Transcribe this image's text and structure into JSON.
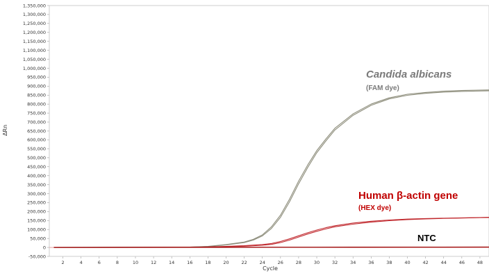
{
  "chart_data": {
    "type": "line",
    "xlabel": "Cycle",
    "ylabel": "ΔRn",
    "xlim": [
      0.5,
      49
    ],
    "ylim": [
      -50000,
      1350000
    ],
    "x_ticks": [
      2,
      4,
      6,
      8,
      10,
      12,
      14,
      16,
      18,
      20,
      22,
      24,
      26,
      28,
      30,
      32,
      34,
      36,
      38,
      40,
      42,
      44,
      46,
      48
    ],
    "y_ticks": [
      -50000,
      0,
      50000,
      100000,
      150000,
      200000,
      250000,
      300000,
      350000,
      400000,
      450000,
      500000,
      550000,
      600000,
      650000,
      700000,
      750000,
      800000,
      850000,
      900000,
      950000,
      1000000,
      1050000,
      1100000,
      1150000,
      1200000,
      1250000,
      1300000,
      1350000
    ],
    "y_tick_labels": [
      "-50,000",
      "0",
      "50,000",
      "100,000",
      "150,000",
      "200,000",
      "250,000",
      "300,000",
      "350,000",
      "400,000",
      "450,000",
      "500,000",
      "550,000",
      "600,000",
      "650,000",
      "700,000",
      "750,000",
      "800,000",
      "850,000",
      "900,000",
      "950,000",
      "1,000,000",
      "1,050,000",
      "1,100,000",
      "1,150,000",
      "1,200,000",
      "1,250,000",
      "1,300,000",
      "1,350,000"
    ],
    "series": [
      {
        "color": "#8c8c7a",
        "x": [
          1,
          16,
          18,
          20,
          22,
          23,
          24,
          25,
          26,
          27,
          28,
          29,
          30,
          31,
          32,
          34,
          36,
          38,
          40,
          42,
          44,
          46,
          48,
          49
        ],
        "y": [
          0,
          2000,
          6000,
          16000,
          30000,
          45000,
          70000,
          115000,
          180000,
          270000,
          370000,
          460000,
          540000,
          605000,
          665000,
          745000,
          800000,
          835000,
          855000,
          865000,
          872000,
          876000,
          878000,
          879000
        ]
      },
      {
        "color": "#8c8c7a",
        "x": [
          1,
          16,
          18,
          20,
          22,
          23,
          24,
          25,
          26,
          27,
          28,
          29,
          30,
          31,
          32,
          34,
          36,
          38,
          40,
          42,
          44,
          46,
          48,
          49
        ],
        "y": [
          0,
          2000,
          5000,
          14000,
          27000,
          41000,
          64000,
          106000,
          168000,
          255000,
          355000,
          446000,
          528000,
          594000,
          655000,
          737000,
          793000,
          829000,
          849000,
          860000,
          867000,
          871000,
          873000,
          874000
        ]
      },
      {
        "color": "#c0282d",
        "x": [
          1,
          16,
          18,
          20,
          22,
          24,
          25,
          26,
          27,
          28,
          29,
          30,
          31,
          32,
          34,
          36,
          38,
          40,
          42,
          44,
          46,
          48,
          49
        ],
        "y": [
          0,
          1000,
          3000,
          6000,
          10000,
          16000,
          22000,
          33000,
          48000,
          65000,
          82000,
          97000,
          110000,
          121000,
          136000,
          146000,
          153000,
          158000,
          161000,
          163000,
          165000,
          167000,
          168000
        ]
      },
      {
        "color": "#c0282d",
        "x": [
          1,
          16,
          18,
          20,
          22,
          24,
          25,
          26,
          27,
          28,
          29,
          30,
          31,
          32,
          34,
          36,
          38,
          40,
          42,
          44,
          46,
          48,
          49
        ],
        "y": [
          0,
          500,
          2000,
          4000,
          7000,
          12000,
          17000,
          27000,
          41000,
          58000,
          75000,
          90000,
          103000,
          115000,
          130000,
          141000,
          149000,
          155000,
          159000,
          162000,
          164000,
          166000,
          167000
        ]
      },
      {
        "color": "#a01010",
        "x": [
          1,
          20,
          30,
          40,
          49
        ],
        "y": [
          0,
          500,
          1000,
          1500,
          2000
        ]
      }
    ],
    "annotations": [
      {
        "text": "Candida albicans",
        "color": "#7a7a7a",
        "style": "italic-bold"
      },
      {
        "text": "(FAM dye)",
        "color": "#7a7a7a",
        "style": "bold"
      },
      {
        "text": "Human β-actin gene",
        "color": "#c00000",
        "style": "bold"
      },
      {
        "text": "(HEX dye)",
        "color": "#c00000",
        "style": "bold"
      },
      {
        "text": "NTC",
        "color": "#000000",
        "style": "bold"
      }
    ],
    "grid": false
  },
  "colors": {
    "axis": "#cccccc",
    "zero_line": "#e8a0a0"
  }
}
